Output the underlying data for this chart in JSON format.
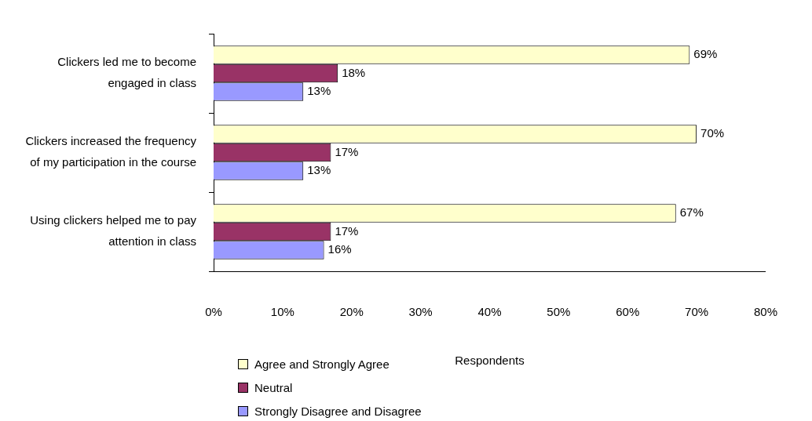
{
  "chart_data": {
    "type": "bar",
    "orientation": "horizontal",
    "xlabel": "Respondents",
    "categories": [
      "Clickers led me to become engaged in class",
      "Clickers increased the frequency of my participation in the course",
      "Using clickers helped me to pay attention in class"
    ],
    "series": [
      {
        "name": "Agree and Strongly Agree",
        "color": "#ffffcc",
        "values": [
          69,
          70,
          67
        ],
        "value_labels": [
          "69%",
          "70%",
          "67%"
        ]
      },
      {
        "name": "Neutral",
        "color": "#993366",
        "values": [
          18,
          17,
          17
        ],
        "value_labels": [
          "18%",
          "17%",
          "17%"
        ]
      },
      {
        "name": "Strongly Disagree and Disagree",
        "color": "#9999ff",
        "values": [
          13,
          13,
          16
        ],
        "value_labels": [
          "13%",
          "13%",
          "16%"
        ]
      }
    ],
    "xlim": [
      0,
      80
    ],
    "xticks": [
      {
        "value": 0,
        "label": "0%"
      },
      {
        "value": 10,
        "label": "10%"
      },
      {
        "value": 20,
        "label": "20%"
      },
      {
        "value": 30,
        "label": "30%"
      },
      {
        "value": 40,
        "label": "40%"
      },
      {
        "value": 50,
        "label": "50%"
      },
      {
        "value": 60,
        "label": "60%"
      },
      {
        "value": 70,
        "label": "70%"
      },
      {
        "value": 80,
        "label": "80%"
      }
    ],
    "grid": false,
    "legend": "bottom left"
  }
}
